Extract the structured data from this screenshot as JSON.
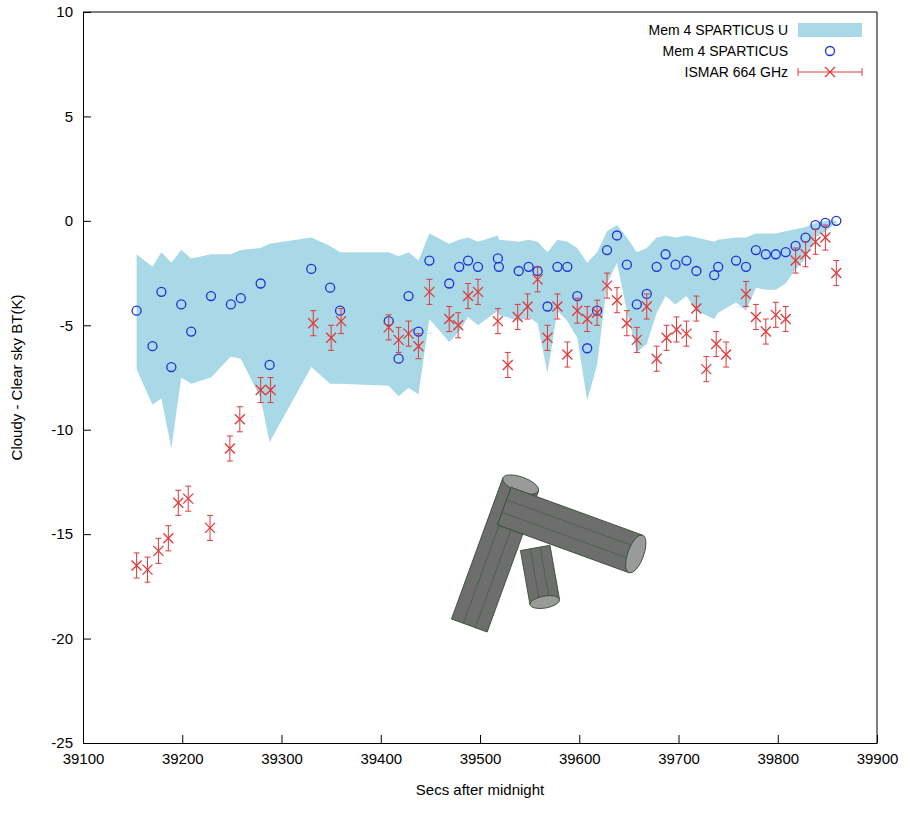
{
  "chart_data": {
    "type": "scatter",
    "x_label": "Secs after midnight",
    "y_label": "Cloudy - Clear sky BT(K)",
    "xlim": [
      39100,
      39900
    ],
    "ylim": [
      -25,
      10
    ],
    "xticks": [
      39100,
      39200,
      39300,
      39400,
      39500,
      39600,
      39700,
      39800,
      39900
    ],
    "yticks": [
      -25,
      -20,
      -15,
      -10,
      -5,
      0,
      5,
      10
    ],
    "grid": false,
    "legend": "upper right",
    "series": [
      {
        "name": "Mem 4 SPARTICUS U",
        "type": "band",
        "color": "#a9d8e6",
        "x": [
          39154,
          39170,
          39179,
          39189,
          39199,
          39209,
          39229,
          39249,
          39259,
          39279,
          39288,
          39330,
          39349,
          39359,
          39408,
          39418,
          39428,
          39438,
          39449,
          39469,
          39479,
          39488,
          39498,
          39518,
          39519,
          39539,
          39549,
          39558,
          39568,
          39578,
          39588,
          39598,
          39608,
          39618,
          39628,
          39638,
          39648,
          39658,
          39668,
          39678,
          39687,
          39697,
          39708,
          39718,
          39736,
          39740,
          39758,
          39768,
          39778,
          39788,
          39798,
          39808,
          39818,
          39828,
          39838,
          39848,
          39859
        ],
        "lower": [
          -7.1,
          -8.8,
          -8.5,
          -10.9,
          -7.5,
          -7.8,
          -7.5,
          -6.5,
          -6.6,
          -8.5,
          -10.6,
          -7.0,
          -7.8,
          -7.8,
          -7.9,
          -8.4,
          -8.0,
          -8.3,
          -4.7,
          -5.8,
          -5.3,
          -4.6,
          -5.0,
          -4.3,
          -4.5,
          -4.8,
          -4.6,
          -4.9,
          -7.3,
          -4.3,
          -4.8,
          -5.6,
          -8.6,
          -6.9,
          -3.0,
          -2.0,
          -4.3,
          -6.3,
          -5.9,
          -4.4,
          -3.6,
          -4.0,
          -3.6,
          -4.3,
          -4.7,
          -4.4,
          -3.9,
          -4.3,
          -3.2,
          -3.3,
          -3.3,
          -3.0,
          -2.3,
          -1.8,
          -0.8,
          -0.5,
          -0.1
        ],
        "upper": [
          -1.6,
          -2.2,
          -1.5,
          -2.0,
          -1.4,
          -1.8,
          -1.6,
          -1.6,
          -1.4,
          -1.3,
          -1.1,
          -0.8,
          -1.2,
          -1.5,
          -1.5,
          -1.7,
          -1.5,
          -1.9,
          -0.6,
          -1.1,
          -0.9,
          -0.8,
          -1.0,
          -0.7,
          -0.9,
          -1.0,
          -0.9,
          -1.0,
          -1.5,
          -0.9,
          -1.0,
          -1.3,
          -2.0,
          -1.5,
          -0.5,
          -0.2,
          -0.8,
          -1.5,
          -1.3,
          -0.8,
          -0.7,
          -0.8,
          -0.7,
          -0.8,
          -1.0,
          -0.9,
          -0.8,
          -0.8,
          -0.6,
          -0.6,
          -0.6,
          -0.5,
          -0.4,
          -0.3,
          -0.1,
          0,
          0
        ]
      },
      {
        "name": "Mem 4 SPARTICUS",
        "type": "scatter",
        "marker": "circle",
        "color": "#1f2fe0",
        "x": [
          39154,
          39170,
          39179,
          39189,
          39199,
          39209,
          39229,
          39249,
          39259,
          39279,
          39288,
          39330,
          39349,
          39359,
          39408,
          39418,
          39428,
          39438,
          39449,
          39469,
          39479,
          39488,
          39498,
          39518,
          39519,
          39539,
          39549,
          39558,
          39568,
          39578,
          39588,
          39598,
          39608,
          39618,
          39628,
          39638,
          39648,
          39658,
          39668,
          39678,
          39687,
          39697,
          39708,
          39718,
          39736,
          39740,
          39758,
          39768,
          39778,
          39788,
          39798,
          39808,
          39818,
          39828,
          39838,
          39848,
          39859
        ],
        "values": [
          -4.3,
          -6.0,
          -3.4,
          -7.0,
          -4.0,
          -5.3,
          -3.6,
          -4.0,
          -3.7,
          -3.0,
          -6.9,
          -2.3,
          -3.2,
          -4.3,
          -4.8,
          -6.6,
          -3.6,
          -5.3,
          -1.9,
          -3.0,
          -2.2,
          -1.9,
          -2.2,
          -1.8,
          -2.2,
          -2.4,
          -2.2,
          -2.4,
          -4.1,
          -2.2,
          -2.2,
          -3.6,
          -6.1,
          -4.3,
          -1.4,
          -0.7,
          -2.1,
          -4.0,
          -3.5,
          -2.2,
          -1.6,
          -2.1,
          -1.9,
          -2.4,
          -2.6,
          -2.2,
          -1.9,
          -2.2,
          -1.4,
          -1.6,
          -1.6,
          -1.5,
          -1.2,
          -0.8,
          -0.2,
          -0.1,
          0
        ]
      },
      {
        "name": "ISMAR 664 GHz",
        "type": "scatter",
        "marker": "x",
        "color": "#e03a3a",
        "x": [
          39154,
          39165,
          39176,
          39186,
          39196,
          39206,
          39228,
          39248,
          39258,
          39279,
          39289,
          39332,
          39350,
          39360,
          39408,
          39418,
          39428,
          39438,
          39449,
          39469,
          39478,
          39488,
          39498,
          39518,
          39528,
          39538,
          39548,
          39558,
          39568,
          39578,
          39588,
          39598,
          39608,
          39618,
          39628,
          39638,
          39648,
          39658,
          39668,
          39678,
          39688,
          39698,
          39708,
          39718,
          39728,
          39738,
          39748,
          39768,
          39778,
          39788,
          39798,
          39808,
          39818,
          39828,
          39838,
          39848,
          39859
        ],
        "values": [
          -16.5,
          -16.7,
          -15.8,
          -15.2,
          -13.5,
          -13.3,
          -14.7,
          -10.9,
          -9.5,
          -8.1,
          -8.1,
          -4.9,
          -5.6,
          -4.8,
          -5.1,
          -5.7,
          -5.4,
          -6.0,
          -3.4,
          -4.7,
          -5.0,
          -3.6,
          -3.4,
          -4.8,
          -6.9,
          -4.6,
          -4.1,
          -2.8,
          -5.6,
          -4.1,
          -6.4,
          -4.3,
          -4.7,
          -4.4,
          -3.1,
          -3.8,
          -4.9,
          -5.7,
          -4.1,
          -6.6,
          -5.6,
          -5.2,
          -5.4,
          -4.2,
          -7.1,
          -5.9,
          -6.4,
          -3.5,
          -4.6,
          -5.3,
          -4.5,
          -4.7,
          -1.9,
          -1.6,
          -1.0,
          -0.8,
          -2.5
        ],
        "errors": [
          0.6,
          0.6,
          0.6,
          0.6,
          0.6,
          0.6,
          0.6,
          0.6,
          0.6,
          0.6,
          0.6,
          0.6,
          0.6,
          0.6,
          0.6,
          0.6,
          0.6,
          0.6,
          0.6,
          0.6,
          0.6,
          0.6,
          0.6,
          0.6,
          0.6,
          0.6,
          0.6,
          0.6,
          0.6,
          0.6,
          0.6,
          0.6,
          0.6,
          0.6,
          0.6,
          0.6,
          0.6,
          0.6,
          0.6,
          0.6,
          0.6,
          0.6,
          0.6,
          0.6,
          0.6,
          0.6,
          0.6,
          0.6,
          0.6,
          0.6,
          0.6,
          0.6,
          0.6,
          0.6,
          0.6,
          0.6,
          0.6
        ]
      }
    ]
  }
}
